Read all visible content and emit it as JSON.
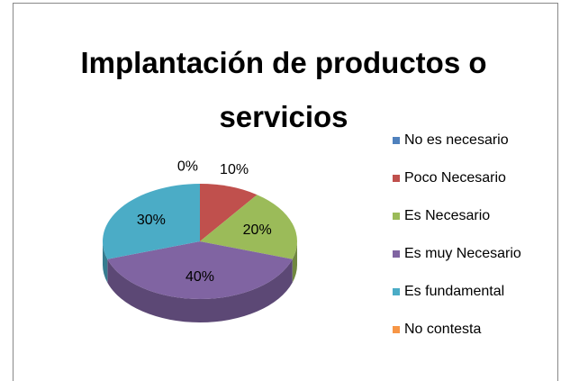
{
  "chart_data": {
    "type": "pie",
    "title": "Implantación de productos o servicios",
    "categories": [
      "No es necesario",
      "Poco Necesario",
      "Es Necesario",
      "Es muy Necesario",
      "Es fundamental",
      "No contesta"
    ],
    "values": [
      0,
      10,
      20,
      40,
      30,
      0
    ],
    "value_labels": [
      "0%",
      "10%",
      "20%",
      "40%",
      "30%",
      null
    ],
    "colors": [
      "#4f81bd",
      "#c0504d",
      "#9bbb59",
      "#8064a2",
      "#4bacc6",
      "#f79646"
    ],
    "legend": "right"
  }
}
